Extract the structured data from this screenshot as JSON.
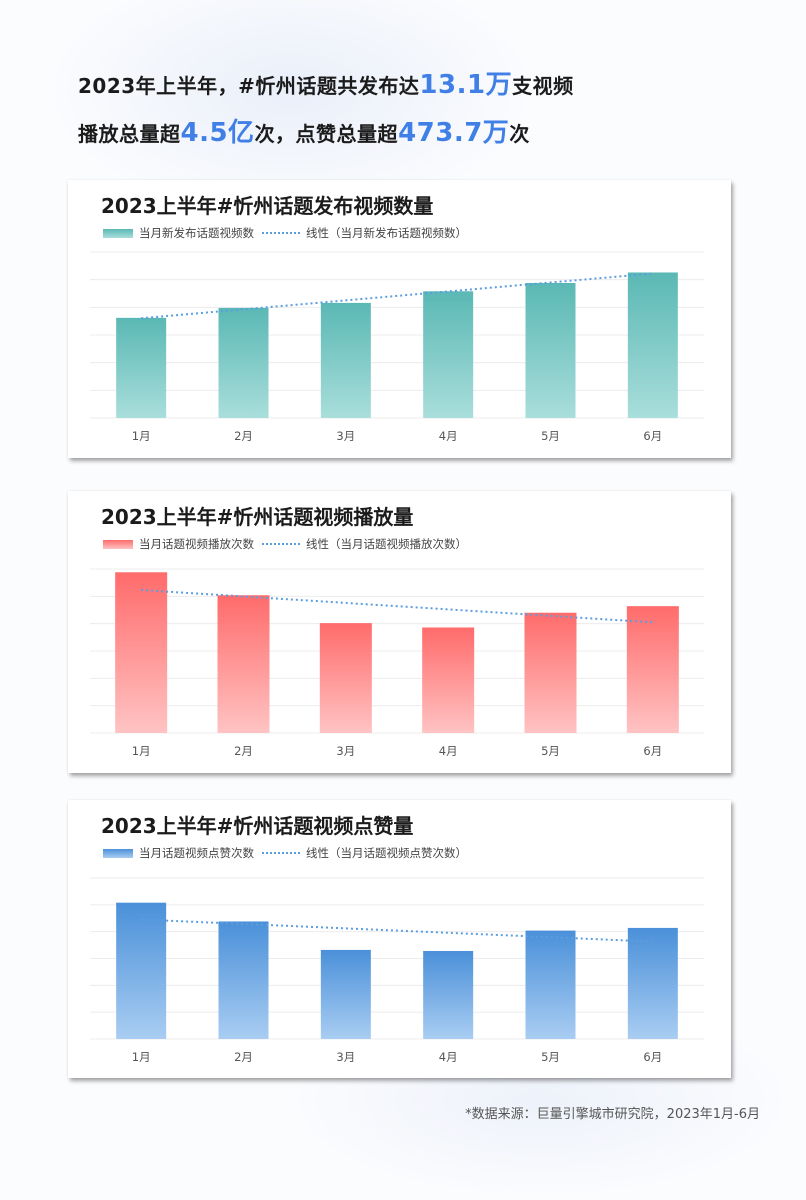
{
  "headline": {
    "line1_pre": "2023年上半年，#忻州话题共发布达",
    "line1_hl": "13.1万",
    "line1_post": "支视频",
    "line2_pre": "播放总量超",
    "line2_hl": "4.5亿",
    "line2_mid": "次，点赞总量超",
    "line2_hl2": "473.7万",
    "line2_post": "次"
  },
  "colors": {
    "accent": "#3f7fe6",
    "chart1_top": "#5ab8b4",
    "chart1_bottom": "#a9dedb",
    "chart2_top": "#ff6b6b",
    "chart2_bottom": "#ffc3c3",
    "chart3_top": "#4a90d9",
    "chart3_bottom": "#a9cdf2",
    "trend": "#5b9ee0"
  },
  "chart_data": [
    {
      "type": "bar",
      "title": "2023上半年#忻州话题发布视频数量",
      "categories": [
        "1月",
        "2月",
        "3月",
        "4月",
        "5月",
        "6月"
      ],
      "series": [
        {
          "name": "当月新发布话题视频数",
          "values": [
            18.1,
            19.9,
            20.8,
            22.9,
            24.4,
            26.3
          ]
        }
      ],
      "trendline_label": "线性（当月新发布话题视频数）",
      "trendline": "linear",
      "ylim": [
        0,
        30
      ],
      "grid": true,
      "legend": "top-left"
    },
    {
      "type": "bar",
      "title": "2023上半年#忻州话题视频播放量",
      "categories": [
        "1月",
        "2月",
        "3月",
        "4月",
        "5月",
        "6月"
      ],
      "series": [
        {
          "name": "当月话题视频播放次数",
          "values": [
            29.4,
            25.2,
            20.1,
            19.3,
            22.0,
            23.2
          ]
        }
      ],
      "trendline_label": "线性（当月话题视频播放次数）",
      "trendline": "linear",
      "ylim": [
        0,
        30
      ],
      "grid": true,
      "legend": "top-left"
    },
    {
      "type": "bar",
      "title": "2023上半年#忻州话题视频点赞量",
      "categories": [
        "1月",
        "2月",
        "3月",
        "4月",
        "5月",
        "6月"
      ],
      "series": [
        {
          "name": "当月话题视频点赞次数",
          "values": [
            25.4,
            21.9,
            16.6,
            16.4,
            20.2,
            20.7
          ]
        }
      ],
      "trendline_label": "线性（当月话题视频点赞次数）",
      "trendline": "linear",
      "ylim": [
        0,
        30
      ],
      "grid": true,
      "legend": "top-left"
    }
  ],
  "footer": {
    "source": "*数据来源：巨量引擎城市研究院，2023年1月-6月"
  }
}
